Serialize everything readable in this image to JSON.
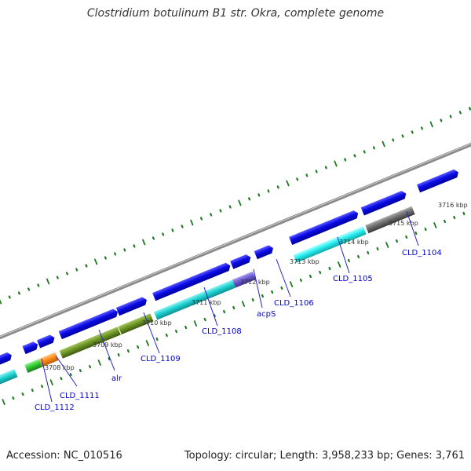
{
  "title": "Clostridium botulinum B1 str. Okra, complete genome",
  "footer": {
    "accession": "Accession: NC_010516",
    "summary": "Topology: circular; Length: 3,958,233 bp; Genes: 3,761"
  },
  "colors": {
    "backbone": "#8a8a8a",
    "tick": "#1e7a1e",
    "forward_gene": "#0a0ae6",
    "label_line": "#2020cc",
    "label_text": "#0000cc",
    "cyan": "#1fd2d2",
    "olive": "#6e9626",
    "green": "#33cc33",
    "orange": "#ff8c1a",
    "slate": "#6a5acd",
    "gray": "#6e6e6e"
  },
  "scale_labels": [
    "3708 kbp",
    "3709 kbp",
    "3710 kbp",
    "3711 kbp",
    "3712 kbp",
    "3713 kbp",
    "3714 kbp",
    "3715 kbp",
    "3716 kbp"
  ],
  "gene_labels": [
    "CLD_1112",
    "CLD_1111",
    "alr",
    "CLD_1109",
    "CLD_1108",
    "acpS",
    "CLD_1106",
    "CLD_1105",
    "CLD_1104"
  ]
}
